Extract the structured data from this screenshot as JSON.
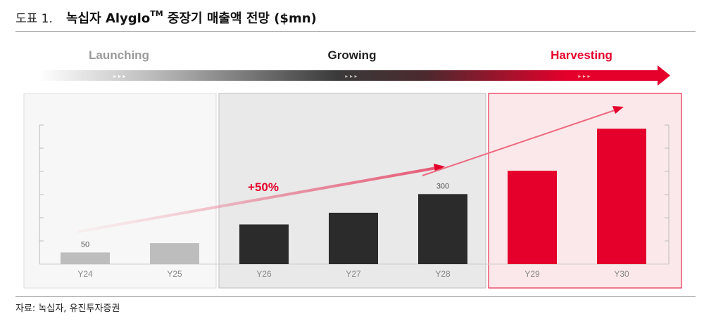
{
  "header": {
    "figure_label": "도표 1.",
    "title_main": "녹십자 Alyglo",
    "title_sup": "TM",
    "title_rest": " 중장기 매출액 전망 ($mn)"
  },
  "source": "자료: 녹십자, 유진투자증권",
  "colors": {
    "gray_bar": "#bdbdbd",
    "dark_bar": "#2b2b2b",
    "red_bar": "#e4002b",
    "accent_red": "#e4002b"
  },
  "chart_data": {
    "type": "bar",
    "categories": [
      "Y24",
      "Y25",
      "Y26",
      "Y27",
      "Y28",
      "Y29",
      "Y30"
    ],
    "values": [
      50,
      90,
      170,
      220,
      300,
      400,
      580
    ],
    "ylim": [
      0,
      650
    ],
    "grid": false,
    "data_labels": [
      {
        "category": "Y24",
        "text": "50"
      },
      {
        "category": "Y28",
        "text": "300"
      }
    ],
    "phases": [
      {
        "label": "Launching",
        "categories": [
          "Y24",
          "Y25"
        ],
        "style": "gray"
      },
      {
        "label": "Growing",
        "categories": [
          "Y26",
          "Y27",
          "Y28"
        ],
        "style": "dark"
      },
      {
        "label": "Harvesting",
        "categories": [
          "Y29",
          "Y30"
        ],
        "style": "red"
      }
    ],
    "annotation": "+50%"
  }
}
